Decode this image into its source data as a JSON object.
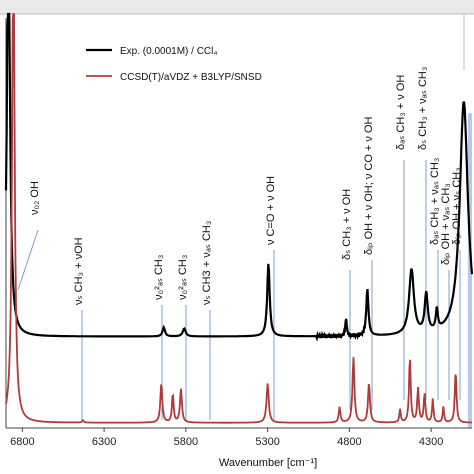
{
  "chart_data": {
    "type": "line",
    "title": "",
    "xlabel": "Wavenumber [cm⁻¹]",
    "ylabel": "",
    "x_reversed": true,
    "xlim": [
      6900,
      4050
    ],
    "x_ticks": [
      6800,
      6300,
      5800,
      5300,
      4800,
      4300
    ],
    "grid": false,
    "legend_position": "top-right",
    "series": [
      {
        "name": "Exp. (0.0001M) / CCl₄",
        "color": "#000000",
        "baseline": 0.33,
        "peaks": [
          {
            "x": 6885,
            "height": 1.6,
            "width": 22
          },
          {
            "x": 5935,
            "height": 0.035,
            "width": 18
          },
          {
            "x": 5810,
            "height": 0.03,
            "width": 22
          },
          {
            "x": 5295,
            "height": 0.28,
            "width": 18
          },
          {
            "x": 4820,
            "height": 0.07,
            "width": 10
          },
          {
            "x": 4690,
            "height": 0.18,
            "width": 16
          },
          {
            "x": 4420,
            "height": 0.25,
            "width": 35
          },
          {
            "x": 4330,
            "height": 0.15,
            "width": 22
          },
          {
            "x": 4265,
            "height": 0.08,
            "width": 15
          },
          {
            "x": 4100,
            "height": 0.9,
            "width": 60
          }
        ]
      },
      {
        "name": "CCSD(T)/aVDZ + B3LYP/SNSD",
        "color": "#b03a3a",
        "baseline": 0.0,
        "peaks": [
          {
            "x": 6855,
            "height": 1.9,
            "width": 18
          },
          {
            "x": 6430,
            "height": 0.01,
            "width": 10
          },
          {
            "x": 5950,
            "height": 0.15,
            "width": 14
          },
          {
            "x": 5880,
            "height": 0.11,
            "width": 12
          },
          {
            "x": 5830,
            "height": 0.13,
            "width": 14
          },
          {
            "x": 5300,
            "height": 0.15,
            "width": 16
          },
          {
            "x": 4860,
            "height": 0.06,
            "width": 12
          },
          {
            "x": 4775,
            "height": 0.25,
            "width": 14
          },
          {
            "x": 4680,
            "height": 0.15,
            "width": 14
          },
          {
            "x": 4490,
            "height": 0.05,
            "width": 10
          },
          {
            "x": 4430,
            "height": 0.25,
            "width": 12
          },
          {
            "x": 4380,
            "height": 0.13,
            "width": 12
          },
          {
            "x": 4340,
            "height": 0.11,
            "width": 12
          },
          {
            "x": 4290,
            "height": 0.09,
            "width": 10
          },
          {
            "x": 4225,
            "height": 0.06,
            "width": 10
          },
          {
            "x": 4150,
            "height": 0.2,
            "width": 12
          }
        ]
      }
    ],
    "highlight_band": {
      "x_min": 4075,
      "x_max": 4050,
      "color": "#a9bfe0"
    },
    "annotations": [
      {
        "id": "a1",
        "text": "ν₀₂ OH",
        "x": 6870
      },
      {
        "id": "a2",
        "text": "νₛ CH₃ + νOH",
        "x": 6430
      },
      {
        "id": "a3",
        "text": "ν₀²ₐₛ CH₃",
        "x": 5950
      },
      {
        "id": "a4",
        "text": "ν₀²ₐₛ CH₃",
        "x": 5850
      },
      {
        "id": "a5",
        "text": "νₛ CH3 + νₐₛ CH₃",
        "x": 5700
      },
      {
        "id": "a6",
        "text": "ν C=O + ν OH",
        "x": 5300
      },
      {
        "id": "a7",
        "text": "δₛ CH₃ + ν OH",
        "x": 4840
      },
      {
        "id": "a8",
        "text": "δᵢₚ OH + ν OH; ν CO + ν OH",
        "x": 4700
      },
      {
        "id": "a9",
        "text": "δₐₛ CH₃ + ν OH",
        "x": 4430
      },
      {
        "id": "a10",
        "text": "δₛ CH₃ + νₐₛ CH₃",
        "x": 4370
      },
      {
        "id": "a11",
        "text": "δₐₛ CH₃ + νₐₛ CH₃",
        "x": 4320
      },
      {
        "id": "a12",
        "text": "δᵢₚ OH + νₐₛ CH₃",
        "x": 4270
      },
      {
        "id": "a13",
        "text": "δᵢₚ OH + νₛ CH₃",
        "x": 4120
      }
    ]
  }
}
